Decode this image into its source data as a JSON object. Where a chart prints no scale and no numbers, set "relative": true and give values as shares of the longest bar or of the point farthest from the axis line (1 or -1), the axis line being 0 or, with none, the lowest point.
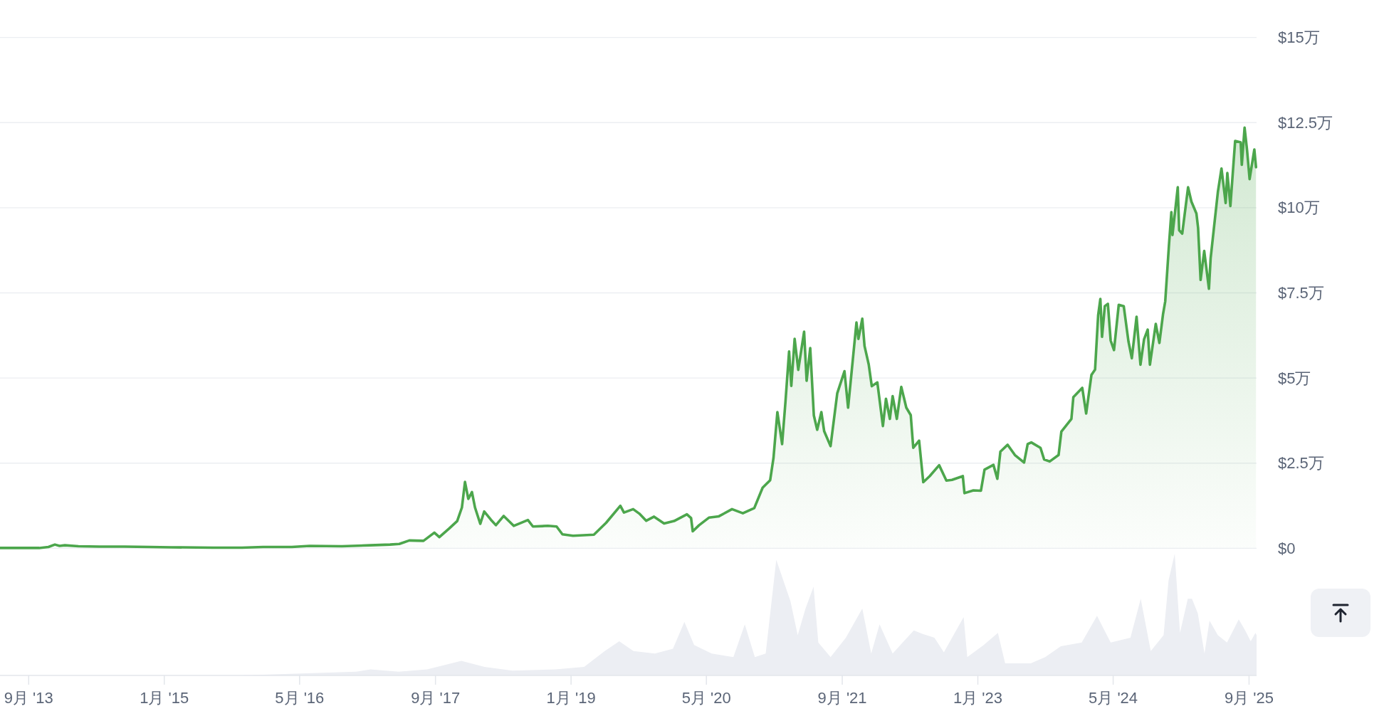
{
  "chart_data": [
    {
      "type": "area",
      "color": "#4ca64c",
      "grid": "y",
      "tick_labels": "y",
      "xlim": [
        "2013-05-21",
        "2025-09-28"
      ],
      "ylim": [
        0,
        15
      ],
      "yticks": [
        {
          "value": 0,
          "label": "$0"
        },
        {
          "value": 2.5,
          "label": "$2.5万"
        },
        {
          "value": 5,
          "label": "$5万"
        },
        {
          "value": 7.5,
          "label": "$7.5万"
        },
        {
          "value": 10,
          "label": "$10万"
        },
        {
          "value": 12.5,
          "label": "$12.5万"
        },
        {
          "value": 15,
          "label": "$15万"
        }
      ],
      "x": [
        "2013-05-21",
        "2013-10-09",
        "2013-11-11",
        "2013-12-04",
        "2013-12-21",
        "2014-01-09",
        "2014-02-27",
        "2014-05-13",
        "2014-08-11",
        "2014-11-09",
        "2015-01-25",
        "2015-06-26",
        "2015-10-07",
        "2015-12-22",
        "2016-04-03",
        "2016-06-06",
        "2016-09-30",
        "2017-01-10",
        "2017-03-22",
        "2017-04-24",
        "2017-05-30",
        "2017-07-20",
        "2017-08-28",
        "2017-09-15",
        "2017-10-20",
        "2017-11-18",
        "2017-12-05",
        "2017-12-16",
        "2017-12-28",
        "2018-01-10",
        "2018-01-21",
        "2018-02-09",
        "2018-02-23",
        "2018-03-19",
        "2018-04-06",
        "2018-05-04",
        "2018-06-09",
        "2018-07-30",
        "2018-08-17",
        "2018-10-10",
        "2018-11-10",
        "2018-12-01",
        "2019-01-08",
        "2019-03-24",
        "2019-05-07",
        "2019-06-27",
        "2019-07-10",
        "2019-08-12",
        "2019-09-03",
        "2019-09-28",
        "2019-10-26",
        "2019-12-01",
        "2020-01-06",
        "2020-02-21",
        "2020-03-07",
        "2020-03-13",
        "2020-04-05",
        "2020-05-10",
        "2020-06-15",
        "2020-08-01",
        "2020-09-09",
        "2020-10-20",
        "2020-11-19",
        "2020-12-16",
        "2020-12-28",
        "2021-01-11",
        "2021-01-28",
        "2021-02-09",
        "2021-02-22",
        "2021-03-02",
        "2021-03-14",
        "2021-03-27",
        "2021-04-17",
        "2021-04-26",
        "2021-05-09",
        "2021-05-22",
        "2021-06-03",
        "2021-06-18",
        "2021-06-28",
        "2021-07-21",
        "2021-08-14",
        "2021-09-09",
        "2021-09-22",
        "2021-10-22",
        "2021-10-29",
        "2021-11-12",
        "2021-11-20",
        "2021-12-05",
        "2021-12-16",
        "2022-01-05",
        "2022-01-25",
        "2022-02-05",
        "2022-02-19",
        "2022-03-01",
        "2022-03-16",
        "2022-04-01",
        "2022-04-19",
        "2022-05-05",
        "2022-05-14",
        "2022-06-04",
        "2022-06-19",
        "2022-07-12",
        "2022-08-15",
        "2022-09-10",
        "2022-09-30",
        "2022-11-08",
        "2022-11-14",
        "2022-12-16",
        "2023-01-12",
        "2023-01-25",
        "2023-02-26",
        "2023-03-12",
        "2023-03-23",
        "2023-04-18",
        "2023-05-14",
        "2023-06-16",
        "2023-06-29",
        "2023-07-12",
        "2023-08-14",
        "2023-08-27",
        "2023-09-16",
        "2023-10-18",
        "2023-10-28",
        "2023-12-03",
        "2023-12-10",
        "2024-01-11",
        "2024-01-25",
        "2024-02-13",
        "2024-02-26",
        "2024-03-08",
        "2024-03-16",
        "2024-03-22",
        "2024-04-01",
        "2024-04-12",
        "2024-04-22",
        "2024-05-04",
        "2024-05-21",
        "2024-06-08",
        "2024-06-25",
        "2024-07-07",
        "2024-07-24",
        "2024-08-07",
        "2024-08-20",
        "2024-09-02",
        "2024-09-10",
        "2024-10-01",
        "2024-10-14",
        "2024-10-27",
        "2024-11-04",
        "2024-11-17",
        "2024-11-26",
        "2024-11-30",
        "2024-12-19",
        "2024-12-24",
        "2025-01-04",
        "2025-01-25",
        "2025-02-06",
        "2025-02-24",
        "2025-03-02",
        "2025-03-11",
        "2025-03-24",
        "2025-04-10",
        "2025-04-16",
        "2025-04-27",
        "2025-05-12",
        "2025-05-25",
        "2025-06-09",
        "2025-06-15",
        "2025-06-26",
        "2025-07-13",
        "2025-08-02",
        "2025-08-06",
        "2025-08-16",
        "2025-08-25",
        "2025-09-03",
        "2025-09-20",
        "2025-09-26"
      ],
      "values": [
        0.01,
        0.01,
        0.04,
        0.11,
        0.07,
        0.09,
        0.06,
        0.05,
        0.05,
        0.04,
        0.03,
        0.02,
        0.02,
        0.04,
        0.04,
        0.07,
        0.06,
        0.09,
        0.11,
        0.13,
        0.23,
        0.22,
        0.46,
        0.33,
        0.58,
        0.8,
        1.2,
        1.95,
        1.45,
        1.65,
        1.2,
        0.72,
        1.08,
        0.84,
        0.68,
        0.95,
        0.66,
        0.83,
        0.64,
        0.66,
        0.64,
        0.41,
        0.37,
        0.4,
        0.75,
        1.25,
        1.05,
        1.15,
        1.02,
        0.81,
        0.93,
        0.73,
        0.8,
        1,
        0.89,
        0.5,
        0.68,
        0.9,
        0.94,
        1.15,
        1.03,
        1.18,
        1.78,
        2,
        2.65,
        4,
        3.06,
        4.3,
        5.78,
        4.77,
        6.15,
        5.24,
        6.36,
        4.92,
        5.88,
        3.9,
        3.48,
        4,
        3.44,
        3,
        4.55,
        5.2,
        4.13,
        6.63,
        6.15,
        6.74,
        5.94,
        5.4,
        4.76,
        4.87,
        3.59,
        4.39,
        3.8,
        4.47,
        3.8,
        4.74,
        4.13,
        3.91,
        2.95,
        3.16,
        1.94,
        2.12,
        2.44,
        1.99,
        2.01,
        2.12,
        1.62,
        1.7,
        1.69,
        2.31,
        2.45,
        2.04,
        2.84,
        3.04,
        2.74,
        2.52,
        3.06,
        3.11,
        2.95,
        2.61,
        2.55,
        2.74,
        3.43,
        3.8,
        4.44,
        4.71,
        3.96,
        5.09,
        5.25,
        6.84,
        7.32,
        6.21,
        7.11,
        7.18,
        6.1,
        5.82,
        7.15,
        7.11,
        6.07,
        5.58,
        6.8,
        5.39,
        6.14,
        6.42,
        5.39,
        6.59,
        6.03,
        6.87,
        7.25,
        8.86,
        9.87,
        9.2,
        10.6,
        9.34,
        9.24,
        10.6,
        10.18,
        9.83,
        9.41,
        7.88,
        8.73,
        7.62,
        8.51,
        9.34,
        10.46,
        11.15,
        10.14,
        11.02,
        10.05,
        11.96,
        11.92,
        11.26,
        12.35,
        11.68,
        10.84,
        11.71,
        11.19
      ]
    },
    {
      "type": "area",
      "color": "#eceef3",
      "relative": true,
      "tick_labels": "x",
      "xlim": [
        "2013-05-21",
        "2025-09-28"
      ],
      "xticks": [
        {
          "value": "2013-09-01",
          "label": "9月 '13"
        },
        {
          "value": "2015-01-01",
          "label": "1月 '15"
        },
        {
          "value": "2016-05-01",
          "label": "5月 '16"
        },
        {
          "value": "2017-09-01",
          "label": "9月 '17"
        },
        {
          "value": "2019-01-01",
          "label": "1月 '19"
        },
        {
          "value": "2020-05-01",
          "label": "5月 '20"
        },
        {
          "value": "2021-09-01",
          "label": "9月 '21"
        },
        {
          "value": "2023-01-01",
          "label": "1月 '23"
        },
        {
          "value": "2024-05-01",
          "label": "5月 '24"
        },
        {
          "value": "2025-09-01",
          "label": "9月 '25"
        }
      ],
      "x": [
        "2013-05-21",
        "2015-10-02",
        "2016-11-20",
        "2017-01-11",
        "2017-04-22",
        "2017-08-02",
        "2017-12-03",
        "2018-02-24",
        "2018-06-04",
        "2018-11-06",
        "2019-02-17",
        "2019-05-02",
        "2019-06-23",
        "2019-08-13",
        "2019-10-29",
        "2020-01-02",
        "2020-02-12",
        "2020-03-18",
        "2020-05-20",
        "2020-08-06",
        "2020-09-16",
        "2020-10-22",
        "2020-11-30",
        "2021-01-07",
        "2021-02-27",
        "2021-03-25",
        "2021-04-22",
        "2021-05-21",
        "2021-06-07",
        "2021-07-21",
        "2021-09-14",
        "2021-11-12",
        "2021-12-14",
        "2022-01-13",
        "2022-03-01",
        "2022-05-16",
        "2022-06-17",
        "2022-07-29",
        "2022-09-01",
        "2022-11-11",
        "2022-11-24",
        "2023-01-22",
        "2023-03-14",
        "2023-04-09",
        "2023-07-10",
        "2023-08-31",
        "2023-10-26",
        "2024-01-09",
        "2024-03-04",
        "2024-04-22",
        "2024-07-02",
        "2024-08-08",
        "2024-09-13",
        "2024-10-29",
        "2024-11-16",
        "2024-12-08",
        "2024-12-27",
        "2025-01-24",
        "2025-02-08",
        "2025-03-01",
        "2025-03-25",
        "2025-04-12",
        "2025-05-12",
        "2025-06-14",
        "2025-07-26",
        "2025-08-18",
        "2025-09-07",
        "2025-09-24",
        "2025-09-28"
      ],
      "values": [
        0,
        0,
        0.03,
        0.05,
        0.03,
        0.05,
        0.12,
        0.07,
        0.04,
        0.05,
        0.07,
        0.2,
        0.28,
        0.2,
        0.18,
        0.22,
        0.44,
        0.25,
        0.18,
        0.15,
        0.42,
        0.15,
        0.18,
        0.95,
        0.61,
        0.33,
        0.55,
        0.73,
        0.27,
        0.15,
        0.31,
        0.55,
        0.18,
        0.42,
        0.18,
        0.37,
        0.34,
        0.31,
        0.19,
        0.48,
        0.15,
        0.25,
        0.35,
        0.1,
        0.1,
        0.15,
        0.24,
        0.27,
        0.49,
        0.27,
        0.31,
        0.63,
        0.2,
        0.33,
        0.78,
        1,
        0.35,
        0.63,
        0.63,
        0.51,
        0.18,
        0.45,
        0.33,
        0.27,
        0.46,
        0.37,
        0.28,
        0.35,
        0.33
      ]
    }
  ]
}
